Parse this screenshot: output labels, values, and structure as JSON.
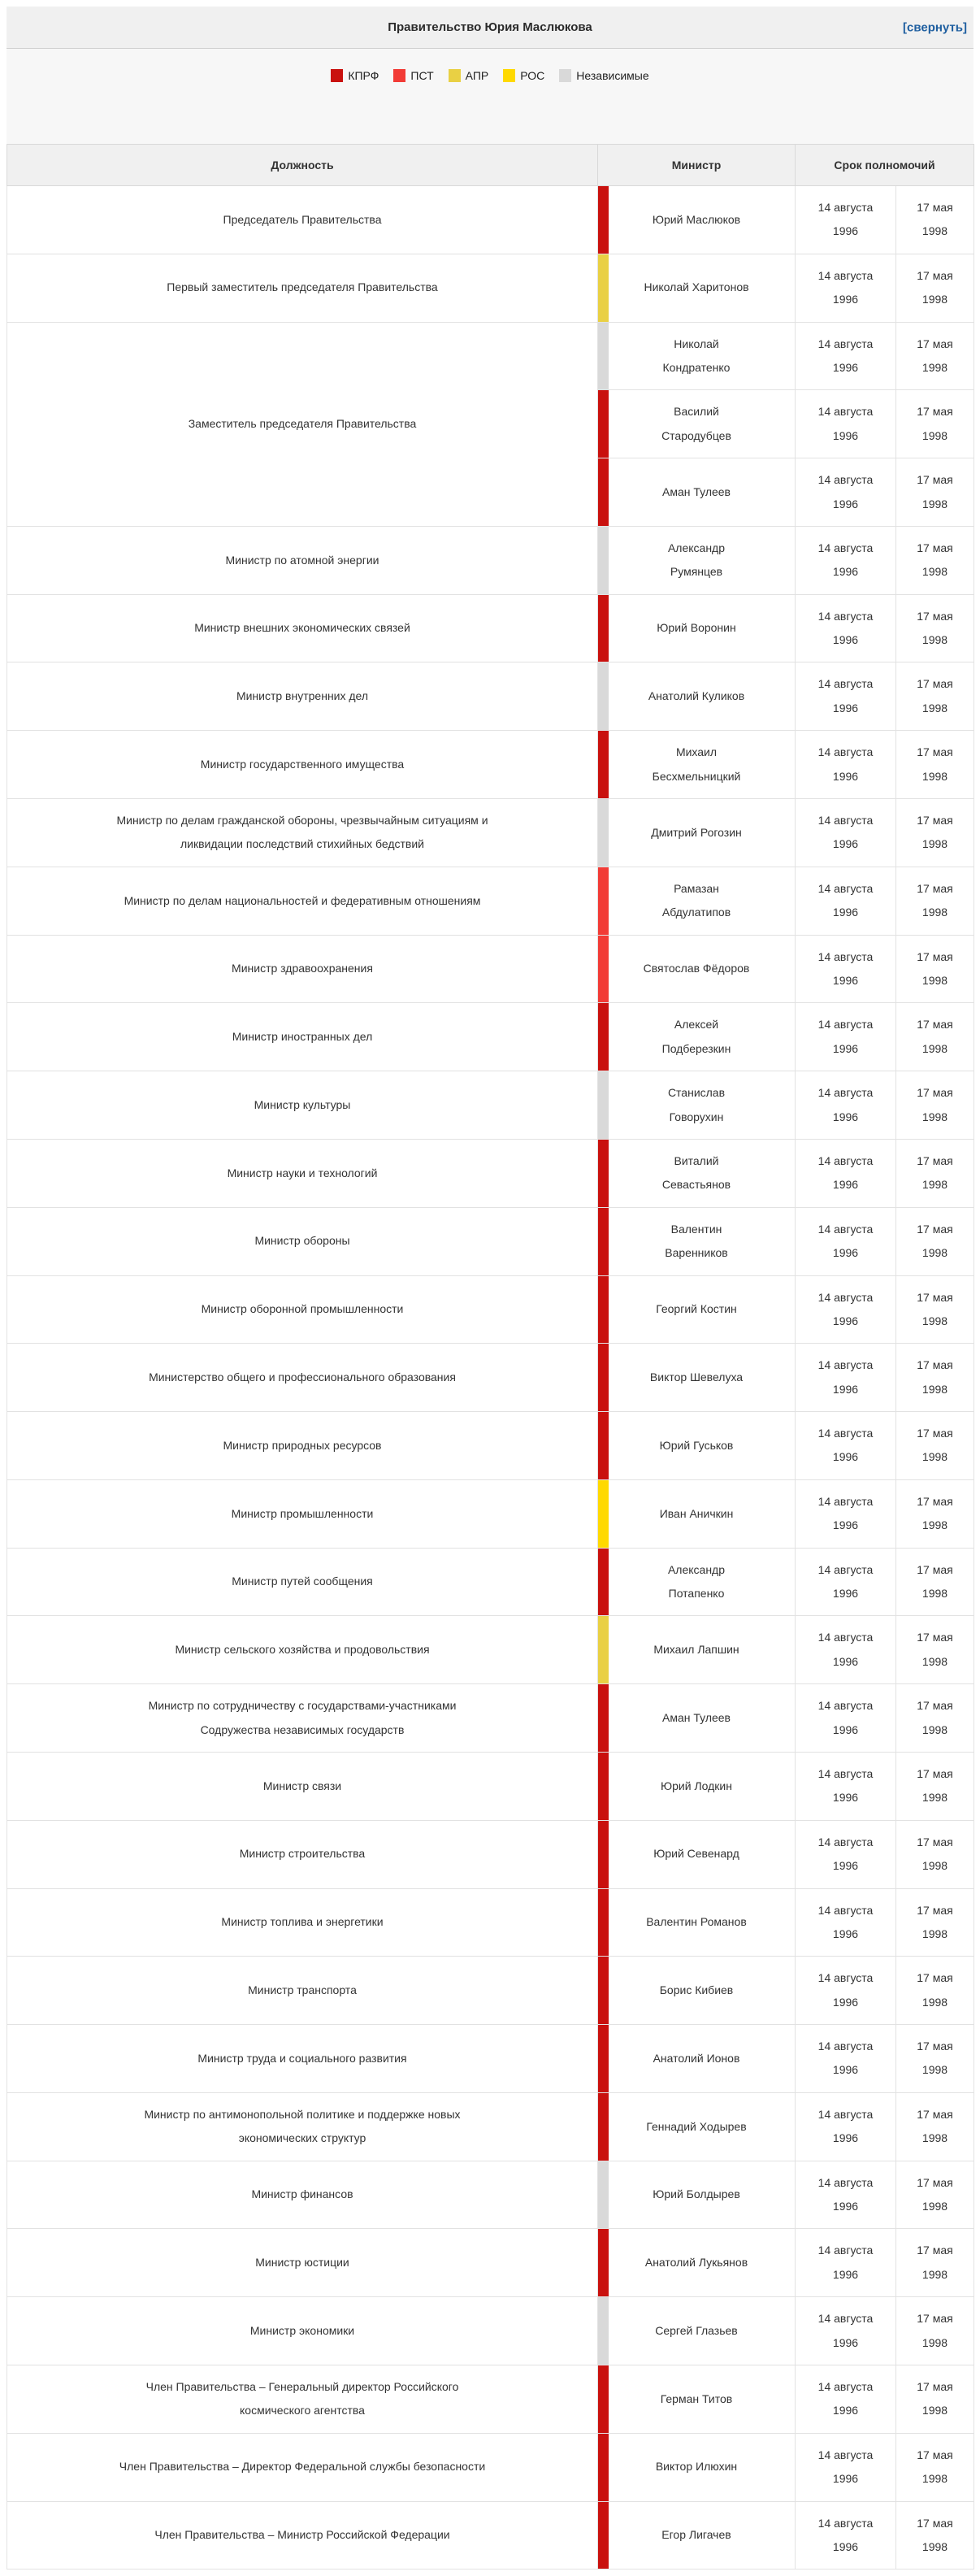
{
  "header": {
    "title": "Правительство Юрия Маслюкова",
    "collapse_link": "[свернуть]"
  },
  "legend": [
    {
      "id": "kprf",
      "label": "КПРФ",
      "color": "#c9110e"
    },
    {
      "id": "pst",
      "label": "ПСТ",
      "color": "#f23b36"
    },
    {
      "id": "apr",
      "label": "АПР",
      "color": "#e9d044"
    },
    {
      "id": "ros",
      "label": "РОС",
      "color": "#ffd900"
    },
    {
      "id": "nezav",
      "label": "Независимые",
      "color": "#d9d9d9"
    }
  ],
  "table": {
    "columns": {
      "position": "Должность",
      "minister": "Министр",
      "term": "Срок полномочий"
    },
    "term_start": "14 августа 1996",
    "term_end": "17 мая 1998",
    "groups": [
      {
        "position": "Председатель Правительства",
        "ministers": [
          {
            "name": "Юрий Маслюков",
            "party": "kprf"
          }
        ]
      },
      {
        "position": "Первый заместитель председателя Правительства",
        "ministers": [
          {
            "name": "Николай Харитонов",
            "party": "apr"
          }
        ]
      },
      {
        "position": "Заместитель председателя Правительства",
        "ministers": [
          {
            "name": "Николай Кондратенко",
            "party": "nezav"
          },
          {
            "name": "Василий Стародубцев",
            "party": "kprf"
          },
          {
            "name": "Аман Тулеев",
            "party": "kprf"
          }
        ]
      },
      {
        "position": "Министр по атомной энергии",
        "ministers": [
          {
            "name": "Александр Румянцев",
            "party": "nezav"
          }
        ]
      },
      {
        "position": "Министр внешних экономических связей",
        "ministers": [
          {
            "name": "Юрий Воронин",
            "party": "kprf"
          }
        ]
      },
      {
        "position": "Министр внутренних дел",
        "ministers": [
          {
            "name": "Анатолий Куликов",
            "party": "nezav"
          }
        ]
      },
      {
        "position": "Министр государственного имущества",
        "ministers": [
          {
            "name": "Михаил Бесхмельницкий",
            "party": "kprf"
          }
        ]
      },
      {
        "position": "Министр по делам гражданской обороны, чрезвычайным ситуациям и ликвидации последствий стихийных бедствий",
        "ministers": [
          {
            "name": "Дмитрий Рогозин",
            "party": "nezav"
          }
        ]
      },
      {
        "position": "Министр по делам национальностей и федеративным отношениям",
        "ministers": [
          {
            "name": "Рамазан Абдулатипов",
            "party": "pst"
          }
        ]
      },
      {
        "position": "Министр здравоохранения",
        "ministers": [
          {
            "name": "Святослав Фёдоров",
            "party": "pst"
          }
        ]
      },
      {
        "position": "Министр иностранных дел",
        "ministers": [
          {
            "name": "Алексей Подберезкин",
            "party": "kprf"
          }
        ]
      },
      {
        "position": "Министр культуры",
        "ministers": [
          {
            "name": "Станислав Говорухин",
            "party": "nezav"
          }
        ]
      },
      {
        "position": "Министр науки и технологий",
        "ministers": [
          {
            "name": "Виталий Севастьянов",
            "party": "kprf"
          }
        ]
      },
      {
        "position": "Министр обороны",
        "ministers": [
          {
            "name": "Валентин Варенников",
            "party": "kprf"
          }
        ]
      },
      {
        "position": "Министр оборонной промышленности",
        "ministers": [
          {
            "name": "Георгий Костин",
            "party": "kprf"
          }
        ]
      },
      {
        "position": "Министерство общего и профессионального образования",
        "ministers": [
          {
            "name": "Виктор Шевелуха",
            "party": "kprf"
          }
        ]
      },
      {
        "position": "Министр природных ресурсов",
        "ministers": [
          {
            "name": "Юрий Гуськов",
            "party": "kprf"
          }
        ]
      },
      {
        "position": "Министр промышленности",
        "ministers": [
          {
            "name": "Иван Аничкин",
            "party": "ros"
          }
        ]
      },
      {
        "position": "Министр путей сообщения",
        "ministers": [
          {
            "name": "Александр Потапенко",
            "party": "kprf"
          }
        ]
      },
      {
        "position": "Министр сельского хозяйства и продовольствия",
        "ministers": [
          {
            "name": "Михаил Лапшин",
            "party": "apr"
          }
        ]
      },
      {
        "position": "Министр по сотрудничеству с государствами-участниками Содружества независимых государств",
        "ministers": [
          {
            "name": "Аман Тулеев",
            "party": "kprf"
          }
        ]
      },
      {
        "position": "Министр связи",
        "ministers": [
          {
            "name": "Юрий Лодкин",
            "party": "kprf"
          }
        ]
      },
      {
        "position": "Министр строительства",
        "ministers": [
          {
            "name": "Юрий Севенард",
            "party": "kprf"
          }
        ]
      },
      {
        "position": "Министр топлива и энергетики",
        "ministers": [
          {
            "name": "Валентин Романов",
            "party": "kprf"
          }
        ]
      },
      {
        "position": "Министр транспорта",
        "ministers": [
          {
            "name": "Борис Кибиев",
            "party": "kprf"
          }
        ]
      },
      {
        "position": "Министр труда и социального развития",
        "ministers": [
          {
            "name": "Анатолий Ионов",
            "party": "kprf"
          }
        ]
      },
      {
        "position": "Министр по антимонопольной политике и поддержке новых экономических структур",
        "ministers": [
          {
            "name": "Геннадий Ходырев",
            "party": "kprf"
          }
        ]
      },
      {
        "position": "Министр финансов",
        "ministers": [
          {
            "name": "Юрий Болдырев",
            "party": "nezav"
          }
        ]
      },
      {
        "position": "Министр юстиции",
        "ministers": [
          {
            "name": "Анатолий Лукьянов",
            "party": "kprf"
          }
        ]
      },
      {
        "position": "Министр экономики",
        "ministers": [
          {
            "name": "Сергей Глазьев",
            "party": "nezav"
          }
        ]
      },
      {
        "position": "Член Правительства – Генеральный директор Российского космического агентства",
        "ministers": [
          {
            "name": "Герман Титов",
            "party": "kprf"
          }
        ]
      },
      {
        "position": "Член Правительства – Директор Федеральной службы безопасности",
        "ministers": [
          {
            "name": "Виктор Илюхин",
            "party": "kprf"
          }
        ]
      },
      {
        "position": "Член Правительства – Министр Российской Федерации",
        "ministers": [
          {
            "name": "Егор Лигачев",
            "party": "kprf"
          }
        ]
      }
    ]
  }
}
